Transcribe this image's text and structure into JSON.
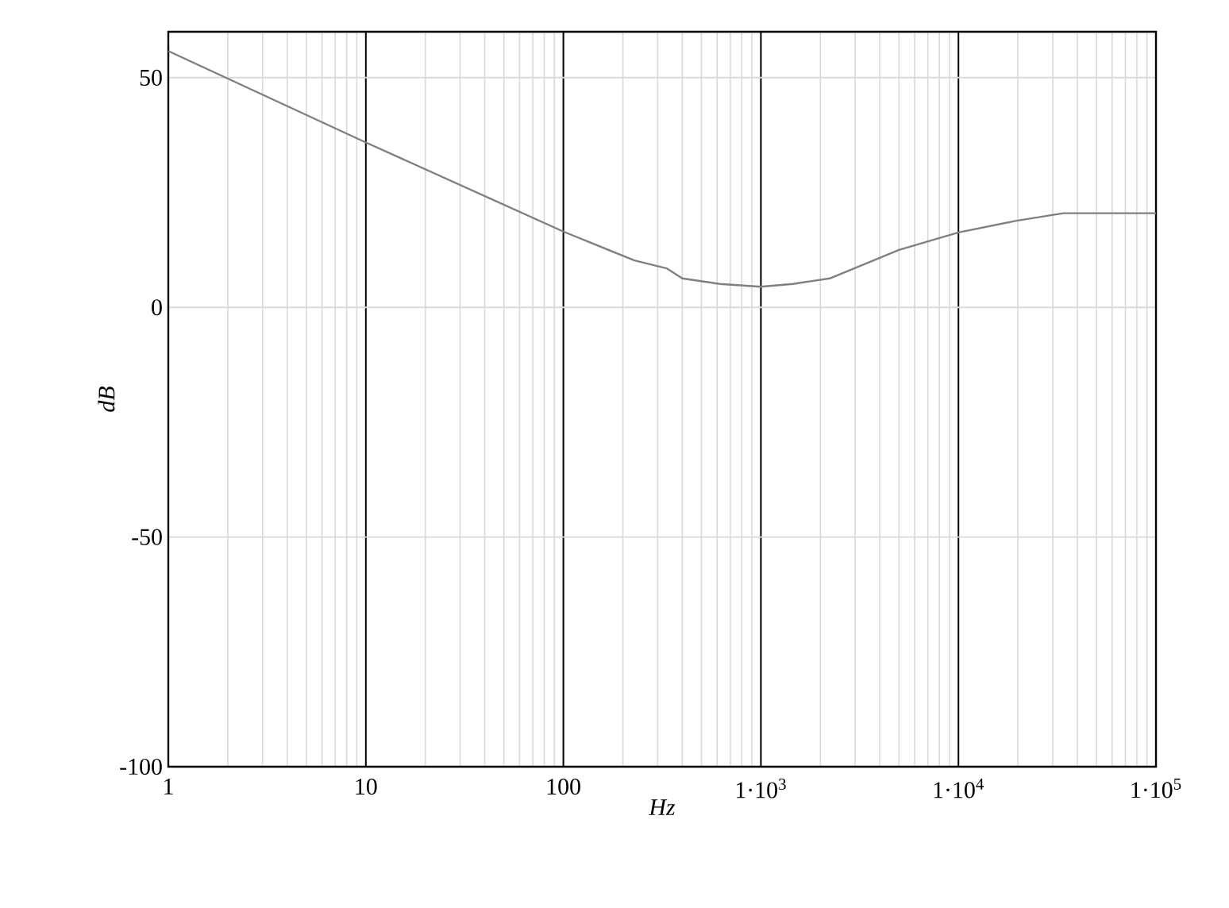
{
  "chart_data": {
    "type": "line",
    "xlabel": "Hz",
    "ylabel": "dB",
    "log": "x",
    "grid": true,
    "marker": "none",
    "line_style": "solid",
    "x": [
      1,
      2,
      10,
      100,
      229,
      333,
      400,
      620,
      1000,
      1450,
      2230,
      5000,
      10000,
      19400,
      34000,
      100000
    ],
    "series": [
      {
        "color": "#808080",
        "values": [
          55.8,
          49.8,
          35.9,
          16.5,
          10.2,
          8.5,
          6.3,
          5.1,
          4.5,
          5.1,
          6.3,
          12.5,
          16.3,
          18.8,
          20.5,
          20.5
        ]
      }
    ],
    "xlim": [
      1,
      100000
    ],
    "ylim": [
      -100,
      60
    ],
    "xticks": [
      1,
      10,
      100,
      {
        "value": 1000,
        "label": "1·10$^{3}$"
      },
      {
        "value": 10000,
        "label": "1·10$^{4}$"
      },
      {
        "value": 100000,
        "label": "1·10$^{5}$"
      }
    ],
    "yticks": [
      -100,
      -50,
      0,
      50
    ]
  }
}
